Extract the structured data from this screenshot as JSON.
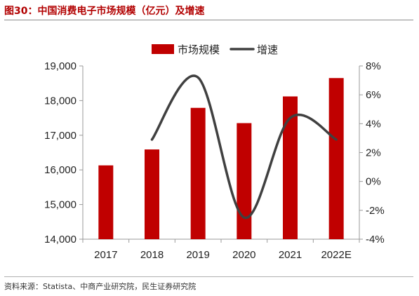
{
  "figure": {
    "title": "图30：中国消费电子市场规模（亿元）及增速",
    "source": "资料来源：Statista、中商产业研究院，民生证券研究院"
  },
  "chart_data": {
    "type": "bar",
    "categories": [
      "2017",
      "2018",
      "2019",
      "2020",
      "2021",
      "2022E"
    ],
    "series": [
      {
        "name": "市场规模",
        "type": "bar",
        "axis": "left",
        "color": "#c00000",
        "values": [
          16130,
          16590,
          17790,
          17350,
          18120,
          18650
        ]
      },
      {
        "name": "增速",
        "type": "line",
        "axis": "right",
        "color": "#404040",
        "smooth": true,
        "values": [
          null,
          2.9,
          7.2,
          -2.5,
          4.4,
          2.9
        ]
      }
    ],
    "left_axis": {
      "ylim": [
        14000,
        19000
      ],
      "ticks": [
        14000,
        15000,
        16000,
        17000,
        18000,
        19000
      ],
      "tick_labels": [
        "14,000",
        "15,000",
        "16,000",
        "17,000",
        "18,000",
        "19,000"
      ]
    },
    "right_axis": {
      "ylim": [
        -4,
        8
      ],
      "ticks": [
        -4,
        -2,
        0,
        2,
        4,
        6,
        8
      ],
      "tick_labels": [
        "-4%",
        "-2%",
        "0%",
        "2%",
        "4%",
        "6%",
        "8%"
      ]
    },
    "legend": {
      "position": "top-right",
      "items": [
        {
          "label": "市场规模",
          "marker": "bar",
          "color": "#c00000"
        },
        {
          "label": "增速",
          "marker": "line",
          "color": "#404040"
        }
      ]
    },
    "grid": false,
    "xlabel": "",
    "ylabel": ""
  }
}
